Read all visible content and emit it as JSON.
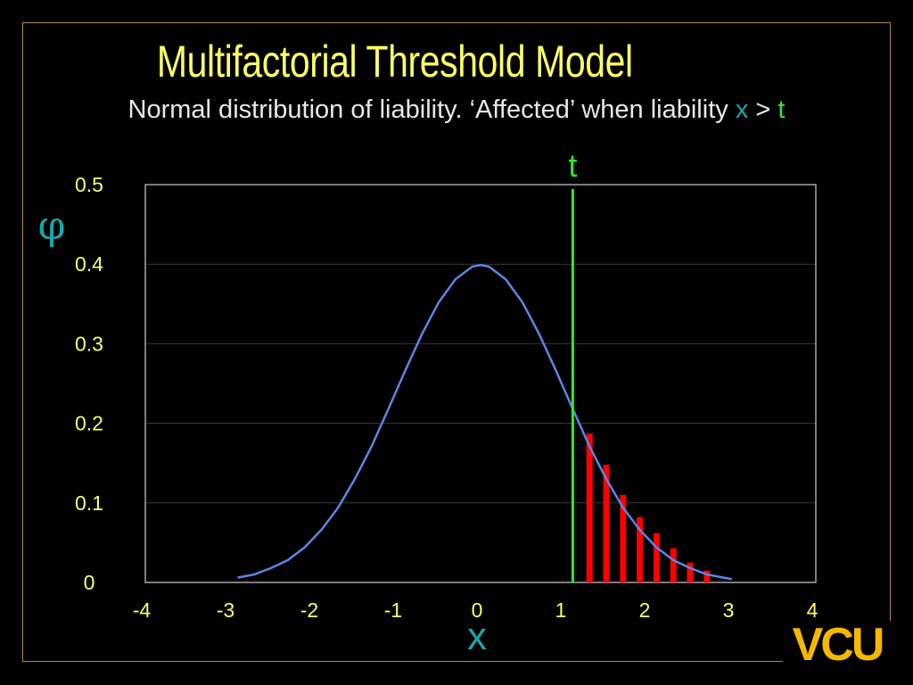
{
  "title": "Multifactorial Threshold Model",
  "subtitle": {
    "prefix": "Normal distribution of liability.  ‘Affected’ when liability ",
    "var_x": "x",
    "gt": " > ",
    "var_t": "t"
  },
  "colors": {
    "title": "#ffff66",
    "curve": "#5b86e5",
    "threshold": "#2ee82e",
    "bars": "#ff0000",
    "axis_labels": "#ffff66",
    "x_symbol": "#19a7a9",
    "logo": "#f5b800"
  },
  "chart_data": {
    "type": "line",
    "title": "",
    "xlabel": "x",
    "ylabel": "φ",
    "xlim": [
      -4,
      4
    ],
    "ylim": [
      0,
      0.5
    ],
    "x_ticks": [
      "-4",
      "-3",
      "-2",
      "-1",
      "0",
      "1",
      "2",
      "3",
      "4"
    ],
    "y_ticks": [
      "0",
      "0.1",
      "0.2",
      "0.3",
      "0.4",
      "0.5"
    ],
    "grid": true,
    "series": [
      {
        "kind": "curve",
        "x": [
          -2.9,
          -2.7,
          -2.5,
          -2.3,
          -2.1,
          -1.9,
          -1.7,
          -1.5,
          -1.3,
          -1.1,
          -0.9,
          -0.7,
          -0.5,
          -0.3,
          -0.1,
          0.0,
          0.1,
          0.3,
          0.5,
          0.7,
          0.9,
          1.1,
          1.3,
          1.5,
          1.7,
          1.9,
          2.1,
          2.3,
          2.5,
          2.7,
          2.9,
          3.0
        ],
        "y": [
          0.006,
          0.01,
          0.018,
          0.028,
          0.044,
          0.066,
          0.094,
          0.13,
          0.171,
          0.218,
          0.266,
          0.312,
          0.352,
          0.381,
          0.397,
          0.399,
          0.397,
          0.381,
          0.352,
          0.312,
          0.266,
          0.218,
          0.171,
          0.13,
          0.094,
          0.066,
          0.044,
          0.028,
          0.018,
          0.01,
          0.006,
          0.004
        ]
      },
      {
        "kind": "bars",
        "x": [
          1.3,
          1.5,
          1.7,
          1.9,
          2.1,
          2.3,
          2.5,
          2.7
        ],
        "y": [
          0.187,
          0.148,
          0.11,
          0.082,
          0.062,
          0.043,
          0.025,
          0.015
        ]
      }
    ],
    "threshold": {
      "label": "t",
      "x": 1.1
    }
  },
  "logo": {
    "text": "VCU"
  }
}
